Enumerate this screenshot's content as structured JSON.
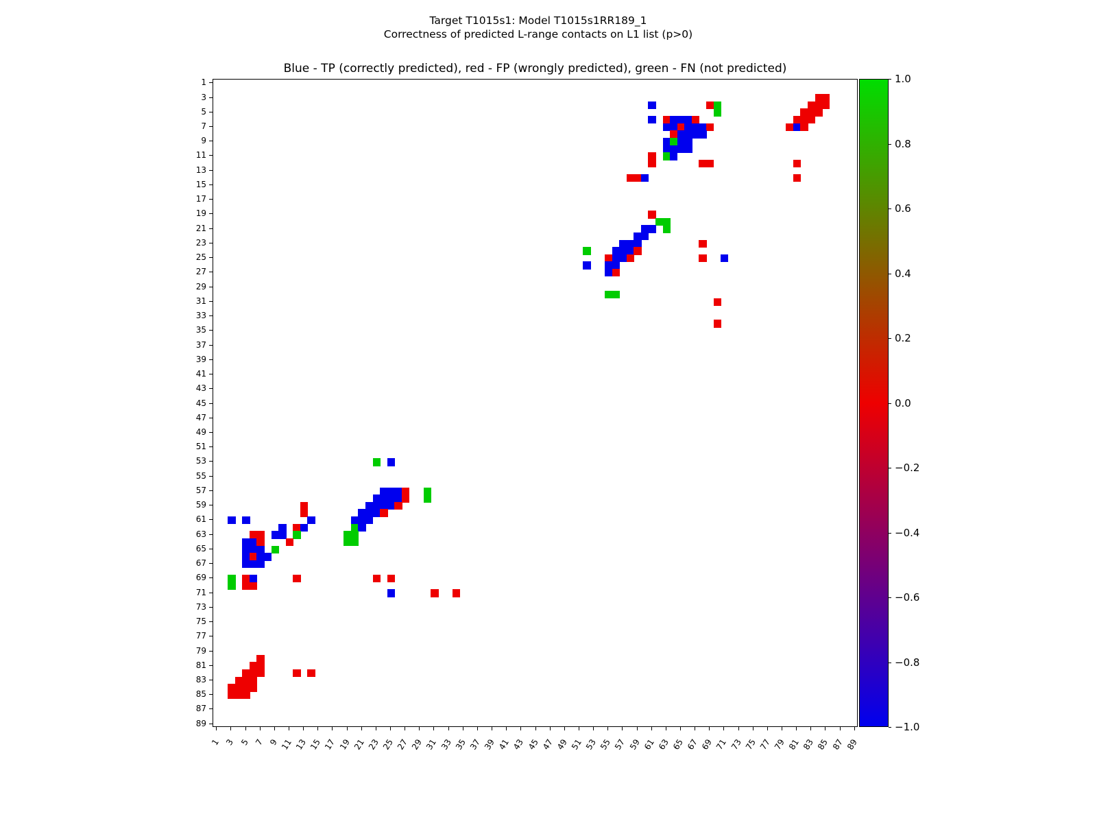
{
  "figure": {
    "title_line1": "Target T1015s1: Model T1015s1RR189_1",
    "title_line2": "Correctness of predicted L-range contacts on L1 list (p>0)",
    "axes_title": "Blue - TP (correctly predicted), red - FP (wrongly predicted), green - FN (not predicted)"
  },
  "colors": {
    "tp": "#0000ee",
    "fp": "#ee0000",
    "fn": "#00cc00",
    "axis": "#000000",
    "background": "#ffffff"
  },
  "chart_data": {
    "type": "heatmap",
    "title": "Blue - TP (correctly predicted), red - FP (wrongly predicted), green - FN (not predicted)",
    "suptitle_line1": "Target T1015s1: Model T1015s1RR189_1",
    "suptitle_line2": "Correctness of predicted L-range contacts on L1 list (p>0)",
    "x_range": [
      1,
      89
    ],
    "y_range": [
      1,
      89
    ],
    "y_axis_inverted": true,
    "grid": false,
    "x_tick_labels": [
      1,
      3,
      5,
      7,
      9,
      11,
      13,
      15,
      17,
      19,
      21,
      23,
      25,
      27,
      29,
      31,
      33,
      35,
      37,
      39,
      41,
      43,
      45,
      47,
      49,
      51,
      53,
      55,
      57,
      59,
      61,
      63,
      65,
      67,
      69,
      71,
      73,
      75,
      77,
      79,
      81,
      83,
      85,
      87,
      89
    ],
    "y_tick_labels": [
      1,
      3,
      5,
      7,
      9,
      11,
      13,
      15,
      17,
      19,
      21,
      23,
      25,
      27,
      29,
      31,
      33,
      35,
      37,
      39,
      41,
      43,
      45,
      47,
      49,
      51,
      53,
      55,
      57,
      59,
      61,
      63,
      65,
      67,
      69,
      71,
      73,
      75,
      77,
      79,
      81,
      83,
      85,
      87,
      89
    ],
    "classes": {
      "tp": {
        "label": "TP (correctly predicted)",
        "color": "#0000ee",
        "value": -1
      },
      "fp": {
        "label": "FP (wrongly predicted)",
        "color": "#ee0000",
        "value": 0
      },
      "fn": {
        "label": "FN (not predicted)",
        "color": "#00cc00",
        "value": 1
      }
    },
    "colorbar": {
      "min": -1.0,
      "max": 1.0,
      "tick_labels": [
        "1.0",
        "0.8",
        "0.6",
        "0.4",
        "0.2",
        "0.0",
        "−0.2",
        "−0.4",
        "−0.6",
        "−0.8",
        "−1.0"
      ],
      "gradient_top": "#00dd00",
      "gradient_mid": "#ee0000",
      "gradient_bottom": "#0000ee"
    },
    "cells": [
      [
        3,
        84,
        "fp"
      ],
      [
        3,
        85,
        "fp"
      ],
      [
        4,
        83,
        "fp"
      ],
      [
        4,
        84,
        "fp"
      ],
      [
        4,
        85,
        "fp"
      ],
      [
        5,
        82,
        "fp"
      ],
      [
        5,
        83,
        "fp"
      ],
      [
        5,
        84,
        "fp"
      ],
      [
        6,
        81,
        "fp"
      ],
      [
        6,
        82,
        "fp"
      ],
      [
        6,
        83,
        "fp"
      ],
      [
        7,
        80,
        "fp"
      ],
      [
        7,
        81,
        "tp"
      ],
      [
        7,
        82,
        "fp"
      ],
      [
        4,
        61,
        "tp"
      ],
      [
        4,
        69,
        "fp"
      ],
      [
        4,
        70,
        "fn"
      ],
      [
        5,
        70,
        "fn"
      ],
      [
        6,
        61,
        "tp"
      ],
      [
        6,
        63,
        "fp"
      ],
      [
        6,
        64,
        "tp"
      ],
      [
        6,
        65,
        "tp"
      ],
      [
        6,
        66,
        "tp"
      ],
      [
        6,
        67,
        "fp"
      ],
      [
        7,
        63,
        "tp"
      ],
      [
        7,
        64,
        "tp"
      ],
      [
        7,
        65,
        "fp"
      ],
      [
        7,
        66,
        "tp"
      ],
      [
        7,
        67,
        "tp"
      ],
      [
        7,
        68,
        "tp"
      ],
      [
        7,
        69,
        "fp"
      ],
      [
        8,
        64,
        "fp"
      ],
      [
        8,
        65,
        "tp"
      ],
      [
        8,
        66,
        "tp"
      ],
      [
        8,
        67,
        "tp"
      ],
      [
        8,
        68,
        "tp"
      ],
      [
        9,
        63,
        "tp"
      ],
      [
        9,
        64,
        "fn"
      ],
      [
        9,
        65,
        "tp"
      ],
      [
        9,
        66,
        "tp"
      ],
      [
        10,
        63,
        "tp"
      ],
      [
        10,
        64,
        "tp"
      ],
      [
        10,
        65,
        "tp"
      ],
      [
        10,
        66,
        "tp"
      ],
      [
        11,
        61,
        "fp"
      ],
      [
        11,
        63,
        "fn"
      ],
      [
        11,
        64,
        "tp"
      ],
      [
        12,
        61,
        "fp"
      ],
      [
        12,
        68,
        "fp"
      ],
      [
        12,
        69,
        "fp"
      ],
      [
        12,
        81,
        "fp"
      ],
      [
        14,
        58,
        "fp"
      ],
      [
        14,
        59,
        "fp"
      ],
      [
        14,
        60,
        "tp"
      ],
      [
        14,
        81,
        "fp"
      ],
      [
        19,
        61,
        "fp"
      ],
      [
        20,
        62,
        "fn"
      ],
      [
        20,
        63,
        "fn"
      ],
      [
        21,
        63,
        "fn"
      ],
      [
        21,
        60,
        "tp"
      ],
      [
        21,
        61,
        "tp"
      ],
      [
        22,
        59,
        "tp"
      ],
      [
        22,
        60,
        "tp"
      ],
      [
        23,
        57,
        "tp"
      ],
      [
        23,
        58,
        "tp"
      ],
      [
        23,
        59,
        "tp"
      ],
      [
        23,
        68,
        "fp"
      ],
      [
        24,
        52,
        "fn"
      ],
      [
        24,
        56,
        "tp"
      ],
      [
        24,
        57,
        "tp"
      ],
      [
        24,
        58,
        "tp"
      ],
      [
        24,
        59,
        "fp"
      ],
      [
        25,
        55,
        "fp"
      ],
      [
        25,
        56,
        "tp"
      ],
      [
        25,
        57,
        "tp"
      ],
      [
        25,
        58,
        "fp"
      ],
      [
        25,
        68,
        "fp"
      ],
      [
        25,
        71,
        "tp"
      ],
      [
        26,
        52,
        "tp"
      ],
      [
        26,
        55,
        "tp"
      ],
      [
        26,
        56,
        "tp"
      ],
      [
        27,
        55,
        "tp"
      ],
      [
        27,
        56,
        "fp"
      ],
      [
        30,
        55,
        "fn"
      ],
      [
        30,
        56,
        "fn"
      ],
      [
        31,
        70,
        "fp"
      ],
      [
        34,
        70,
        "fp"
      ],
      [
        53,
        23,
        "fn"
      ],
      [
        53,
        25,
        "tp"
      ],
      [
        57,
        24,
        "tp"
      ],
      [
        57,
        25,
        "tp"
      ],
      [
        57,
        26,
        "tp"
      ],
      [
        57,
        27,
        "fp"
      ],
      [
        57,
        30,
        "fn"
      ],
      [
        58,
        30,
        "fn"
      ],
      [
        58,
        23,
        "tp"
      ],
      [
        58,
        24,
        "tp"
      ],
      [
        58,
        25,
        "tp"
      ],
      [
        58,
        26,
        "tp"
      ],
      [
        58,
        27,
        "fp"
      ],
      [
        59,
        13,
        "fp"
      ],
      [
        59,
        22,
        "tp"
      ],
      [
        59,
        23,
        "tp"
      ],
      [
        59,
        24,
        "tp"
      ],
      [
        59,
        25,
        "tp"
      ],
      [
        59,
        26,
        "fp"
      ],
      [
        60,
        13,
        "fp"
      ],
      [
        60,
        21,
        "tp"
      ],
      [
        60,
        22,
        "tp"
      ],
      [
        60,
        23,
        "tp"
      ],
      [
        60,
        24,
        "fp"
      ],
      [
        61,
        3,
        "tp"
      ],
      [
        61,
        5,
        "tp"
      ],
      [
        61,
        14,
        "tp"
      ],
      [
        61,
        20,
        "tp"
      ],
      [
        61,
        21,
        "tp"
      ],
      [
        61,
        22,
        "tp"
      ],
      [
        62,
        10,
        "tp"
      ],
      [
        62,
        12,
        "fp"
      ],
      [
        62,
        13,
        "tp"
      ],
      [
        62,
        20,
        "fn"
      ],
      [
        62,
        21,
        "tp"
      ],
      [
        63,
        6,
        "fp"
      ],
      [
        63,
        7,
        "fp"
      ],
      [
        63,
        9,
        "tp"
      ],
      [
        63,
        10,
        "tp"
      ],
      [
        63,
        12,
        "fn"
      ],
      [
        63,
        19,
        "fn"
      ],
      [
        63,
        20,
        "fn"
      ],
      [
        64,
        5,
        "tp"
      ],
      [
        64,
        6,
        "tp"
      ],
      [
        64,
        7,
        "fp"
      ],
      [
        64,
        11,
        "fp"
      ],
      [
        64,
        19,
        "fn"
      ],
      [
        64,
        20,
        "fn"
      ],
      [
        65,
        5,
        "tp"
      ],
      [
        65,
        6,
        "tp"
      ],
      [
        65,
        7,
        "tp"
      ],
      [
        65,
        9,
        "fn"
      ],
      [
        66,
        5,
        "tp"
      ],
      [
        66,
        6,
        "fp"
      ],
      [
        66,
        7,
        "tp"
      ],
      [
        66,
        8,
        "tp"
      ],
      [
        67,
        5,
        "tp"
      ],
      [
        67,
        6,
        "tp"
      ],
      [
        67,
        7,
        "tp"
      ],
      [
        69,
        3,
        "fn"
      ],
      [
        69,
        5,
        "fp"
      ],
      [
        69,
        6,
        "tp"
      ],
      [
        69,
        12,
        "fp"
      ],
      [
        69,
        23,
        "fp"
      ],
      [
        69,
        25,
        "fp"
      ],
      [
        70,
        3,
        "fn"
      ],
      [
        70,
        5,
        "fp"
      ],
      [
        70,
        6,
        "fp"
      ],
      [
        71,
        25,
        "tp"
      ],
      [
        71,
        31,
        "fp"
      ],
      [
        71,
        34,
        "fp"
      ],
      [
        80,
        7,
        "fp"
      ],
      [
        81,
        6,
        "fp"
      ],
      [
        81,
        7,
        "fp"
      ],
      [
        82,
        5,
        "fp"
      ],
      [
        82,
        6,
        "fp"
      ],
      [
        82,
        7,
        "fp"
      ],
      [
        82,
        12,
        "fp"
      ],
      [
        82,
        14,
        "fp"
      ],
      [
        83,
        4,
        "fp"
      ],
      [
        83,
        5,
        "fp"
      ],
      [
        83,
        6,
        "fp"
      ],
      [
        84,
        3,
        "fp"
      ],
      [
        84,
        4,
        "fp"
      ],
      [
        84,
        5,
        "fp"
      ],
      [
        84,
        6,
        "fp"
      ],
      [
        85,
        3,
        "fp"
      ],
      [
        85,
        4,
        "fp"
      ],
      [
        85,
        5,
        "fp"
      ]
    ]
  }
}
